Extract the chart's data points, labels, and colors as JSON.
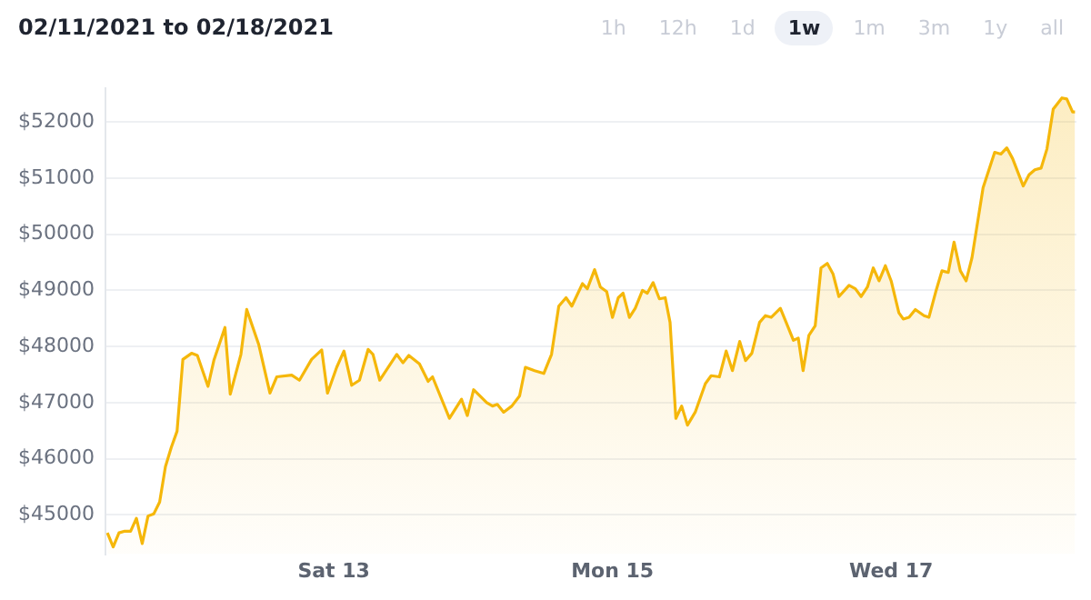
{
  "chart_data": {
    "type": "area",
    "title": "02/11/2021 to 02/18/2021",
    "annotations": [
      "1h",
      "12h",
      "1d",
      "1w",
      "1m",
      "3m",
      "1y",
      "all"
    ],
    "x": [
      "2021-02-11T09:00",
      "2021-02-11T10:00",
      "2021-02-11T11:00",
      "2021-02-11T12:00",
      "2021-02-11T13:00",
      "2021-02-11T14:00",
      "2021-02-11T15:00",
      "2021-02-11T16:00",
      "2021-02-11T17:00",
      "2021-02-11T18:00",
      "2021-02-11T19:00",
      "2021-02-11T20:00",
      "2021-02-11T21:00",
      "2021-02-11T22:00",
      "2021-02-11T23:30",
      "2021-02-12T00:30",
      "2021-02-12T02:20",
      "2021-02-12T03:20",
      "2021-02-12T05:15",
      "2021-02-12T06:10",
      "2021-02-12T08:00",
      "2021-02-12T09:00",
      "2021-02-12T11:05",
      "2021-02-12T13:00",
      "2021-02-12T14:10",
      "2021-02-12T16:45",
      "2021-02-12T18:05",
      "2021-02-12T20:10",
      "2021-02-12T21:55",
      "2021-02-12T22:55",
      "2021-02-13T00:30",
      "2021-02-13T01:45",
      "2021-02-13T03:05",
      "2021-02-13T04:25",
      "2021-02-13T05:55",
      "2021-02-13T06:45",
      "2021-02-13T07:55",
      "2021-02-13T10:50",
      "2021-02-13T11:55",
      "2021-02-13T12:55",
      "2021-02-13T14:45",
      "2021-02-13T16:15",
      "2021-02-13T17:00",
      "2021-02-13T19:55",
      "2021-02-13T22:00",
      "2021-02-13T23:00",
      "2021-02-14T00:05",
      "2021-02-14T02:20",
      "2021-02-14T03:20",
      "2021-02-14T04:10",
      "2021-02-14T05:15",
      "2021-02-14T06:40",
      "2021-02-14T08:00",
      "2021-02-14T09:00",
      "2021-02-14T10:35",
      "2021-02-14T12:10",
      "2021-02-14T13:30",
      "2021-02-14T14:45",
      "2021-02-14T16:00",
      "2021-02-14T17:00",
      "2021-02-14T18:50",
      "2021-02-14T19:40",
      "2021-02-14T20:55",
      "2021-02-14T21:55",
      "2021-02-14T23:00",
      "2021-02-15T00:00",
      "2021-02-15T01:00",
      "2021-02-15T01:50",
      "2021-02-15T02:55",
      "2021-02-15T03:55",
      "2021-02-15T05:10",
      "2021-02-15T06:00",
      "2021-02-15T07:00",
      "2021-02-15T08:05",
      "2021-02-15T09:05",
      "2021-02-15T09:55",
      "2021-02-15T10:55",
      "2021-02-15T11:55",
      "2021-02-15T12:55",
      "2021-02-15T14:15",
      "2021-02-15T16:00",
      "2021-02-15T17:00",
      "2021-02-15T18:25",
      "2021-02-15T19:35",
      "2021-02-15T20:40",
      "2021-02-15T21:55",
      "2021-02-15T22:55",
      "2021-02-16T00:00",
      "2021-02-16T01:20",
      "2021-02-16T02:20",
      "2021-02-16T03:20",
      "2021-02-16T04:55",
      "2021-02-16T05:55",
      "2021-02-16T07:10",
      "2021-02-16T08:00",
      "2021-02-16T08:50",
      "2021-02-16T09:50",
      "2021-02-16T10:55",
      "2021-02-16T11:55",
      "2021-02-16T13:00",
      "2021-02-16T14:00",
      "2021-02-16T15:00",
      "2021-02-16T16:45",
      "2021-02-16T17:50",
      "2021-02-16T18:50",
      "2021-02-16T19:55",
      "2021-02-16T20:55",
      "2021-02-16T21:55",
      "2021-02-16T23:00",
      "2021-02-17T00:00",
      "2021-02-17T01:20",
      "2021-02-17T02:05",
      "2021-02-17T03:05",
      "2021-02-17T04:10",
      "2021-02-17T05:40",
      "2021-02-17T06:30",
      "2021-02-17T07:45",
      "2021-02-17T08:45",
      "2021-02-17T09:50",
      "2021-02-17T10:50",
      "2021-02-17T11:55",
      "2021-02-17T12:55",
      "2021-02-17T13:55",
      "2021-02-17T15:50",
      "2021-02-17T17:50",
      "2021-02-17T18:55",
      "2021-02-17T19:55",
      "2021-02-17T20:55",
      "2021-02-17T22:45",
      "2021-02-17T23:45",
      "2021-02-18T00:45",
      "2021-02-18T01:50",
      "2021-02-18T02:50",
      "2021-02-18T03:55",
      "2021-02-18T05:25",
      "2021-02-18T06:15",
      "2021-02-18T07:15",
      "2021-02-18T07:40"
    ],
    "values": [
      44680,
      44430,
      44680,
      44710,
      44710,
      44940,
      44490,
      44980,
      45020,
      45230,
      45860,
      46200,
      46490,
      47770,
      47880,
      47840,
      47290,
      47750,
      48340,
      47150,
      47860,
      48660,
      48030,
      47170,
      47460,
      47490,
      47400,
      47770,
      47940,
      47170,
      47630,
      47920,
      47310,
      47400,
      47950,
      47860,
      47400,
      47860,
      47710,
      47840,
      47690,
      47380,
      47460,
      46720,
      47060,
      46770,
      47230,
      47000,
      46940,
      46970,
      46830,
      46940,
      47120,
      47630,
      47570,
      47520,
      47860,
      48720,
      48870,
      48720,
      49120,
      49030,
      49370,
      49060,
      48980,
      48520,
      48870,
      48950,
      48520,
      48680,
      49000,
      48950,
      49140,
      48850,
      48870,
      48430,
      46720,
      46940,
      46600,
      46830,
      47340,
      47480,
      47460,
      47920,
      47570,
      48090,
      47750,
      47880,
      48430,
      48550,
      48520,
      48680,
      48430,
      48110,
      48150,
      47570,
      48200,
      48370,
      49400,
      49480,
      49290,
      48890,
      49090,
      49030,
      48890,
      49060,
      49400,
      49170,
      49440,
      49170,
      48600,
      48490,
      48520,
      48660,
      48550,
      48520,
      49000,
      49350,
      49320,
      49860,
      49350,
      49170,
      49580,
      50830,
      51460,
      51430,
      51540,
      51350,
      50860,
      51060,
      51150,
      51180,
      51520,
      52230,
      52430,
      52410,
      52180,
      52180
    ],
    "color": "#f5b70a",
    "xlim": [
      "2021-02-11T08:40",
      "2021-02-18T07:55"
    ],
    "xticks": [
      {
        "value": "2021-02-13",
        "label": "Sat 13"
      },
      {
        "value": "2021-02-15",
        "label": "Mon 15"
      },
      {
        "value": "2021-02-17",
        "label": "Wed 17"
      }
    ],
    "ylim": [
      44300,
      52600
    ],
    "yticks": [
      {
        "value": 45000,
        "label": "$45000"
      },
      {
        "value": 46000,
        "label": "$46000"
      },
      {
        "value": 47000,
        "label": "$47000"
      },
      {
        "value": 48000,
        "label": "$48000"
      },
      {
        "value": 49000,
        "label": "$49000"
      },
      {
        "value": 50000,
        "label": "$50000"
      },
      {
        "value": 51000,
        "label": "$51000"
      },
      {
        "value": 52000,
        "label": "$52000"
      }
    ],
    "grid": "y",
    "legend": false,
    "marker": "none",
    "line_style": "solid"
  }
}
